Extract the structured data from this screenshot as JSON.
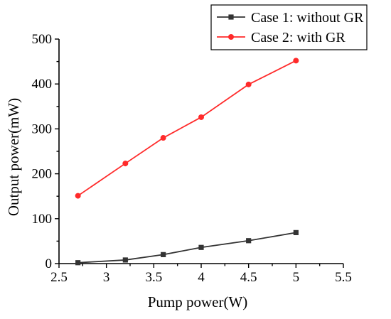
{
  "chart_data": {
    "type": "line",
    "title": "",
    "xlabel": "Pump power(W)",
    "ylabel": "Output power(mW)",
    "xlim": [
      2.5,
      5.5
    ],
    "ylim": [
      0,
      500
    ],
    "xticks": [
      "2.5",
      "3",
      "3.5",
      "4",
      "4.5",
      "5",
      "5.5"
    ],
    "yticks": [
      "0",
      "100",
      "200",
      "300",
      "400",
      "500"
    ],
    "grid": false,
    "legend_position": "top-right",
    "x": [
      2.7,
      3.2,
      3.6,
      4.0,
      4.5,
      5.0
    ],
    "series": [
      {
        "name": "Case 1: without GR",
        "color": "#333333",
        "marker": "square",
        "values": [
          2,
          8,
          20,
          36,
          51,
          69
        ]
      },
      {
        "name": "Case 2: with GR",
        "color": "#ff2a2a",
        "marker": "circle",
        "values": [
          151,
          223,
          280,
          326,
          399,
          452
        ]
      }
    ]
  }
}
